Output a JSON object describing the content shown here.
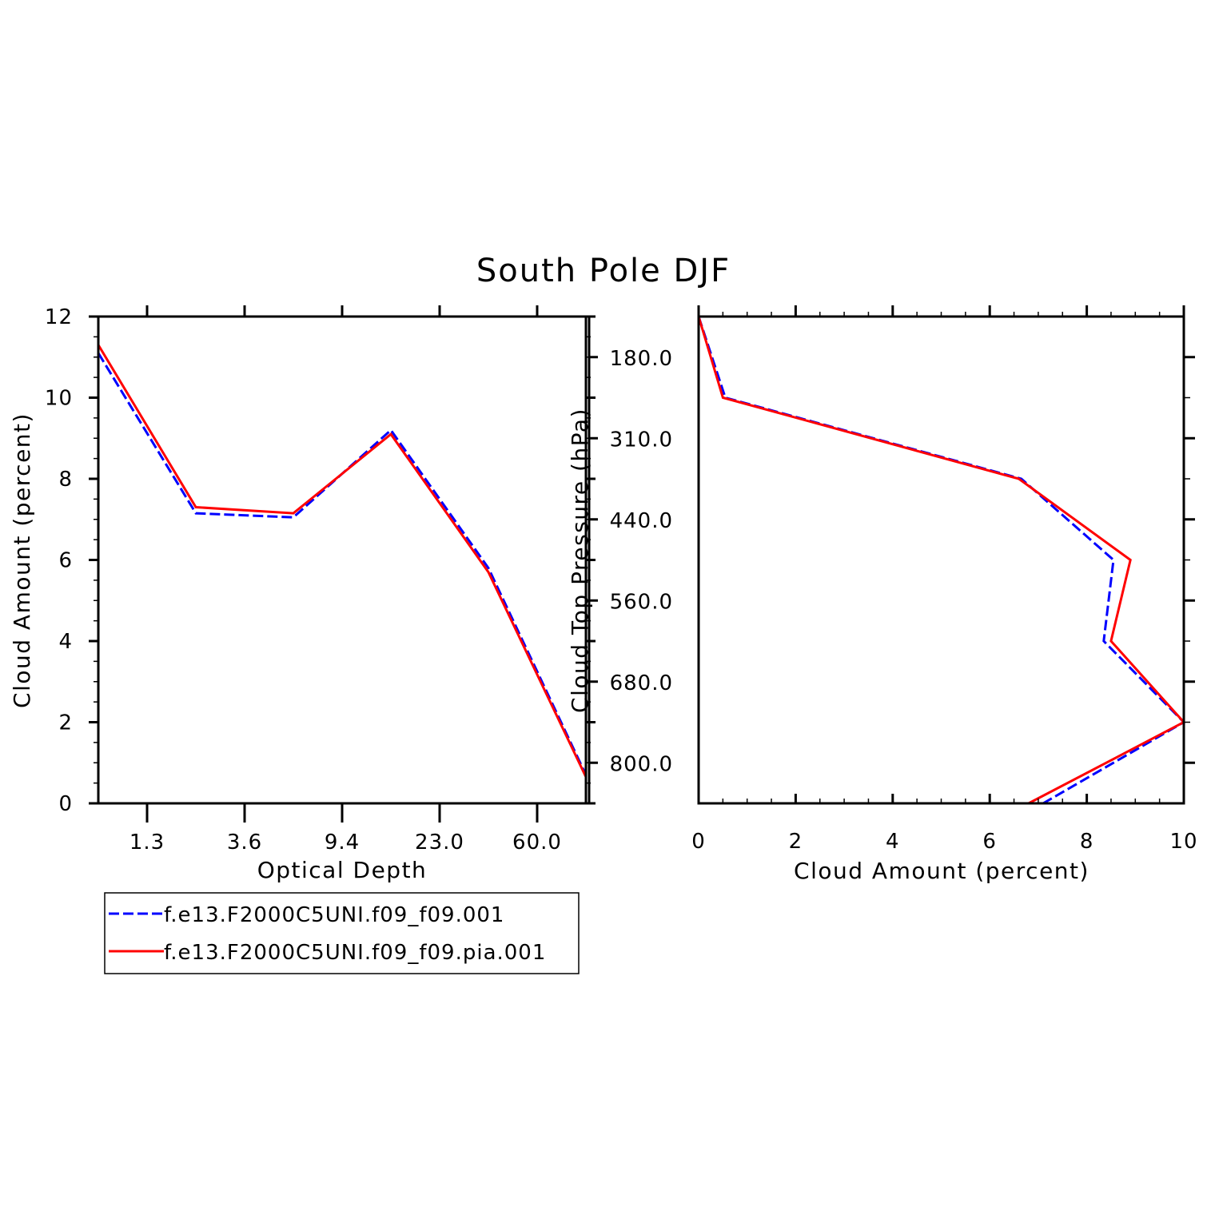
{
  "title": "South Pole DJF",
  "colors": {
    "series1": "#0000ff",
    "series2": "#ff0000",
    "axes": "#000000"
  },
  "legend": {
    "placement": "below-left",
    "entries": [
      {
        "label": "f.e13.F2000C5UNI.f09_f09.001",
        "color": "#0000ff",
        "style": "dashed"
      },
      {
        "label": "f.e13.F2000C5UNI.f09_f09.pia.001",
        "color": "#ff0000",
        "style": "solid"
      }
    ]
  },
  "chart_data": [
    {
      "type": "line",
      "xlabel": "Optical Depth",
      "ylabel": "Cloud Amount (percent)",
      "x_bins": [
        0,
        1,
        2,
        3,
        4,
        5,
        6
      ],
      "xlim": [
        0,
        5
      ],
      "x_tick_labels": [
        {
          "label": "1.3",
          "bin": 0.5
        },
        {
          "label": "3.6",
          "bin": 1.5
        },
        {
          "label": "9.4",
          "bin": 2.5
        },
        {
          "label": "23.0",
          "bin": 3.5
        },
        {
          "label": "60.0",
          "bin": 4.5
        }
      ],
      "ylim": [
        0,
        12
      ],
      "y_ticks": [
        0,
        2,
        4,
        6,
        8,
        10,
        12
      ],
      "series": [
        {
          "name": "f.e13.F2000C5UNI.f09_f09.001",
          "style": "dashed",
          "x": [
            0,
            1,
            2,
            3,
            4,
            5
          ],
          "values": [
            11.1,
            7.15,
            7.05,
            9.2,
            5.8,
            0.7
          ]
        },
        {
          "name": "f.e13.F2000C5UNI.f09_f09.pia.001",
          "style": "solid",
          "x": [
            0,
            1,
            2,
            3,
            4,
            5
          ],
          "values": [
            11.3,
            7.3,
            7.15,
            9.1,
            5.7,
            0.65
          ]
        }
      ]
    },
    {
      "type": "line",
      "xlabel": "Cloud Amount (percent)",
      "ylabel": "Cloud Top Pressure (hPa)",
      "xlim": [
        0,
        10
      ],
      "x_ticks": [
        0,
        2,
        4,
        6,
        8,
        10
      ],
      "ylim": [
        0,
        6
      ],
      "y_tick_labels": [
        {
          "label": "180.0",
          "bin": 0.5
        },
        {
          "label": "310.0",
          "bin": 1.5
        },
        {
          "label": "440.0",
          "bin": 2.5
        },
        {
          "label": "560.0",
          "bin": 3.5
        },
        {
          "label": "680.0",
          "bin": 4.5
        },
        {
          "label": "800.0",
          "bin": 5.5
        }
      ],
      "series": [
        {
          "name": "f.e13.F2000C5UNI.f09_f09.001",
          "style": "dashed",
          "bins": [
            0,
            1,
            2,
            3,
            4,
            5,
            6
          ],
          "values": [
            0.0,
            0.55,
            6.65,
            8.55,
            8.35,
            10.0,
            7.1
          ]
        },
        {
          "name": "f.e13.F2000C5UNI.f09_f09.pia.001",
          "style": "solid",
          "bins": [
            0,
            1,
            2,
            3,
            4,
            5,
            6
          ],
          "values": [
            0.0,
            0.5,
            6.6,
            8.9,
            8.5,
            10.0,
            6.8
          ]
        }
      ]
    }
  ]
}
